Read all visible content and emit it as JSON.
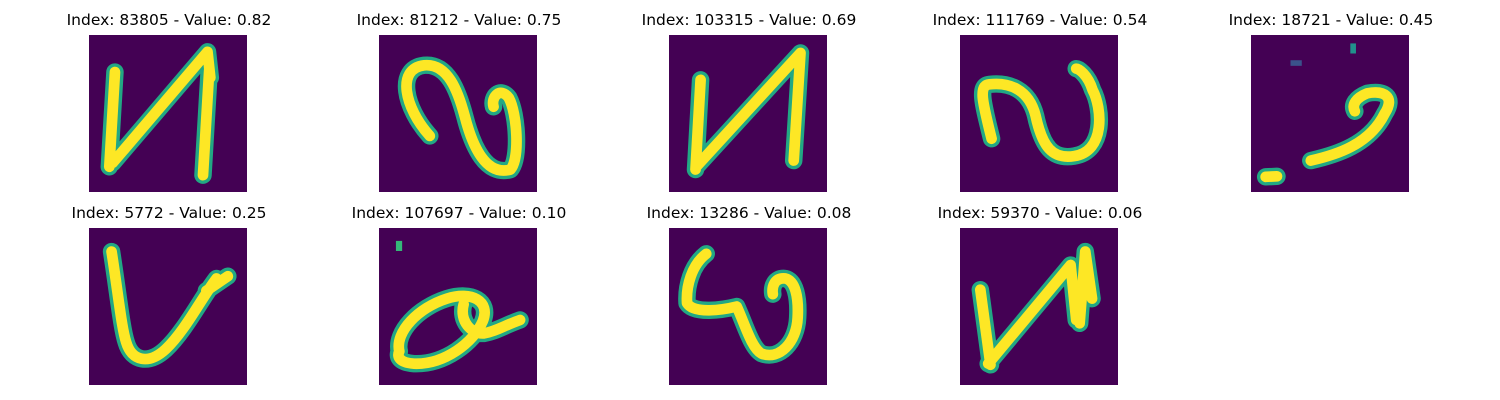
{
  "colors": {
    "background": "#440154",
    "stroke_core": "#fde725",
    "stroke_edge": "#22a884"
  },
  "panels": [
    {
      "title": "Index: 83805 - Value: 0.82",
      "index": "83805",
      "value": "0.82",
      "glyph": "N"
    },
    {
      "title": "Index: 81212 - Value: 0.75",
      "index": "81212",
      "value": "0.75",
      "glyph": "S-curve"
    },
    {
      "title": "Index: 103315 - Value: 0.69",
      "index": "103315",
      "value": "0.69",
      "glyph": "N"
    },
    {
      "title": "Index: 111769 - Value: 0.54",
      "index": "111769",
      "value": "0.54",
      "glyph": "S-curve"
    },
    {
      "title": "Index: 18721 - Value: 0.45",
      "index": "18721",
      "value": "0.45",
      "glyph": "hook"
    },
    {
      "title": "Index: 5772 - Value: 0.25",
      "index": "5772",
      "value": "0.25",
      "glyph": "V"
    },
    {
      "title": "Index: 107697 - Value: 0.10",
      "index": "107697",
      "value": "0.10",
      "glyph": "loop"
    },
    {
      "title": "Index: 13286 - Value: 0.08",
      "index": "13286",
      "value": "0.08",
      "glyph": "W"
    },
    {
      "title": "Index: 59370 - Value: 0.06",
      "index": "59370",
      "value": "0.06",
      "glyph": "N"
    }
  ]
}
